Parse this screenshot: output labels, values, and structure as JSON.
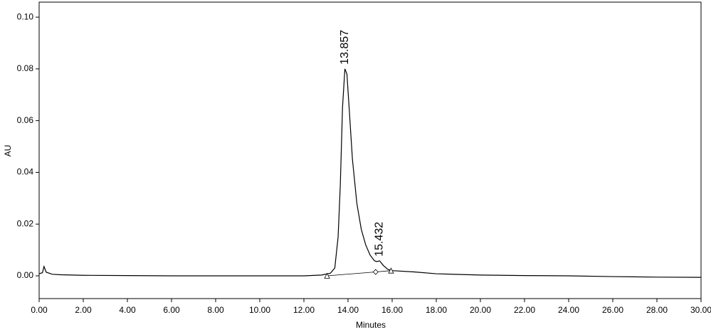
{
  "chart_data": {
    "type": "line",
    "x_label": "Minutes",
    "y_label": "AU",
    "xlim": [
      0,
      30
    ],
    "ylim": [
      -0.0088,
      0.1058
    ],
    "xticks": [
      {
        "value": 0,
        "label": "0.00"
      },
      {
        "value": 2,
        "label": "2.00"
      },
      {
        "value": 4,
        "label": "4.00"
      },
      {
        "value": 6,
        "label": "6.00"
      },
      {
        "value": 8,
        "label": "8.00"
      },
      {
        "value": 10,
        "label": "10.00"
      },
      {
        "value": 12,
        "label": "12.00"
      },
      {
        "value": 14,
        "label": "14.00"
      },
      {
        "value": 16,
        "label": "16.00"
      },
      {
        "value": 18,
        "label": "18.00"
      },
      {
        "value": 20,
        "label": "20.00"
      },
      {
        "value": 22,
        "label": "22.00"
      },
      {
        "value": 24,
        "label": "24.00"
      },
      {
        "value": 26,
        "label": "26.00"
      },
      {
        "value": 28,
        "label": "28.00"
      },
      {
        "value": 30,
        "label": "30.00"
      }
    ],
    "yticks": [
      {
        "value": 0,
        "label": "0.00"
      },
      {
        "value": 0.02,
        "label": "0.02"
      },
      {
        "value": 0.04,
        "label": "0.04"
      },
      {
        "value": 0.06,
        "label": "0.06"
      },
      {
        "value": 0.08,
        "label": "0.08"
      },
      {
        "value": 0.1,
        "label": "0.10"
      }
    ],
    "line": {
      "color": "#000000",
      "x": [
        0,
        0.15,
        0.22,
        0.32,
        0.6,
        1,
        2,
        4,
        6,
        8,
        10,
        12,
        12.8,
        13.2,
        13.4,
        13.55,
        13.65,
        13.75,
        13.857,
        13.95,
        14.05,
        14.2,
        14.4,
        14.6,
        14.8,
        15.0,
        15.2,
        15.3,
        15.432,
        15.6,
        15.8,
        16,
        17,
        18,
        20,
        22,
        24,
        26,
        28,
        30
      ],
      "values": [
        0.0008,
        0.0012,
        0.0036,
        0.0014,
        0.0006,
        0.0004,
        0.0002,
        0.0001,
        0.0,
        0.0,
        0.0,
        0.0,
        0.0003,
        0.001,
        0.003,
        0.015,
        0.035,
        0.065,
        0.08,
        0.078,
        0.065,
        0.045,
        0.028,
        0.018,
        0.012,
        0.008,
        0.0058,
        0.0055,
        0.0058,
        0.004,
        0.0025,
        0.002,
        0.0015,
        0.0008,
        0.0003,
        0.0001,
        0.0,
        -0.0003,
        -0.0005,
        -0.0006
      ]
    },
    "baseline": {
      "x": [
        13.05,
        15.25,
        15.95
      ],
      "values": [
        0.0,
        0.0015,
        0.002
      ],
      "markers": [
        "triangle",
        "diamond",
        "triangle"
      ]
    },
    "annotations": [
      {
        "text": "13.857",
        "x": 13.857,
        "y": 0.08
      },
      {
        "text": "15.432",
        "x": 15.432,
        "y": 0.0058
      }
    ]
  }
}
